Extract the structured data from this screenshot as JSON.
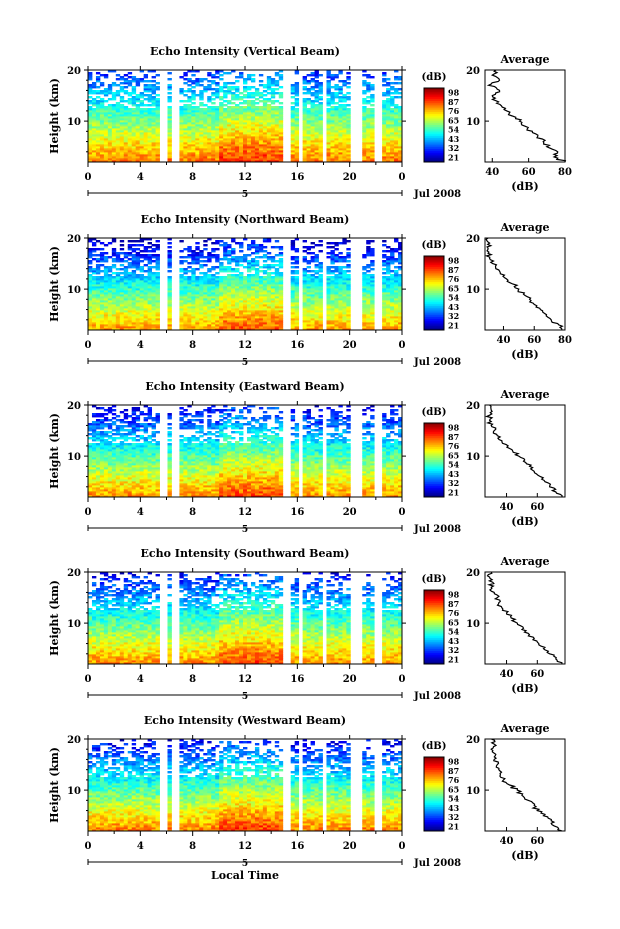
{
  "figure": {
    "xlabel": "Local Time",
    "date_label": "Jul 2008",
    "day_label": "5"
  },
  "chart_data": [
    {
      "type": "heatmap",
      "title": "Echo Intensity (Vertical Beam)",
      "xlabel": "",
      "ylabel": "Height (km)",
      "xlim": [
        0,
        24
      ],
      "ylim": [
        2,
        20
      ],
      "x_ticks": [
        "0",
        "4",
        "8",
        "12",
        "16",
        "20",
        "0"
      ],
      "y_ticks": [
        "20",
        "10"
      ],
      "colorbar": {
        "label": "(dB)",
        "ticks": [
          "98",
          "87",
          "76",
          "65",
          "54",
          "43",
          "32",
          "21"
        ]
      },
      "data_gaps_hours": [
        [
          5.6,
          6.0
        ],
        [
          6.5,
          7.1
        ],
        [
          15.0,
          15.4
        ],
        [
          16.0,
          16.3
        ],
        [
          17.8,
          18.2
        ],
        [
          20.2,
          21.1
        ],
        [
          22.0,
          22.4
        ]
      ],
      "surface_dB": 80,
      "decay_dB_per_km": 2.6,
      "noise_floor_dB": 21,
      "average_profile": {
        "title": "Average",
        "xlabel": "(dB)",
        "xlim": [
          36,
          80
        ],
        "x_ticks": [
          "40",
          "60",
          "80"
        ],
        "heights_km": [
          2,
          3,
          4,
          5,
          6,
          7,
          8,
          9,
          10,
          11,
          12,
          13,
          14,
          15,
          16,
          17,
          18,
          19,
          20
        ],
        "values_dB": [
          80,
          74,
          76,
          70,
          68,
          65,
          62,
          58,
          55,
          51,
          48,
          45,
          42,
          40,
          44,
          38,
          44,
          40,
          42
        ]
      }
    },
    {
      "type": "heatmap",
      "title": "Echo Intensity (Northward Beam)",
      "xlabel": "",
      "ylabel": "Height (km)",
      "xlim": [
        0,
        24
      ],
      "ylim": [
        2,
        20
      ],
      "x_ticks": [
        "0",
        "4",
        "8",
        "12",
        "16",
        "20",
        "0"
      ],
      "y_ticks": [
        "20",
        "10"
      ],
      "colorbar": {
        "label": "(dB)",
        "ticks": [
          "98",
          "87",
          "76",
          "65",
          "54",
          "43",
          "32",
          "21"
        ]
      },
      "data_gaps_hours": [
        [
          5.6,
          6.0
        ],
        [
          6.5,
          7.1
        ],
        [
          15.0,
          15.4
        ],
        [
          16.0,
          16.3
        ],
        [
          17.8,
          18.2
        ],
        [
          20.2,
          21.1
        ],
        [
          22.0,
          22.4
        ]
      ],
      "surface_dB": 77,
      "decay_dB_per_km": 2.9,
      "noise_floor_dB": 21,
      "average_profile": {
        "title": "Average",
        "xlabel": "(dB)",
        "xlim": [
          28,
          80
        ],
        "x_ticks": [
          "40",
          "60",
          "80"
        ],
        "heights_km": [
          2,
          3,
          4,
          5,
          6,
          7,
          8,
          9,
          10,
          11,
          12,
          13,
          14,
          15,
          16,
          17,
          18,
          19,
          20
        ],
        "values_dB": [
          78,
          76,
          71,
          68,
          64,
          60,
          57,
          53,
          50,
          46,
          42,
          38,
          35,
          33,
          31,
          30,
          30,
          31,
          30
        ]
      }
    },
    {
      "type": "heatmap",
      "title": "Echo Intensity (Eastward Beam)",
      "xlabel": "",
      "ylabel": "Height (km)",
      "xlim": [
        0,
        24
      ],
      "ylim": [
        2,
        20
      ],
      "x_ticks": [
        "0",
        "4",
        "8",
        "12",
        "16",
        "20",
        "0"
      ],
      "y_ticks": [
        "20",
        "10"
      ],
      "colorbar": {
        "label": "(dB)",
        "ticks": [
          "98",
          "87",
          "76",
          "65",
          "54",
          "43",
          "32",
          "21"
        ]
      },
      "data_gaps_hours": [
        [
          5.6,
          6.0
        ],
        [
          6.5,
          7.1
        ],
        [
          15.0,
          15.4
        ],
        [
          16.0,
          16.3
        ],
        [
          17.8,
          18.2
        ],
        [
          20.2,
          21.1
        ],
        [
          22.0,
          22.4
        ]
      ],
      "surface_dB": 78,
      "decay_dB_per_km": 2.8,
      "noise_floor_dB": 21,
      "average_profile": {
        "title": "Average",
        "xlabel": "(dB)",
        "xlim": [
          26,
          78
        ],
        "x_ticks": [
          "40",
          "60"
        ],
        "heights_km": [
          2,
          3,
          4,
          5,
          6,
          7,
          8,
          9,
          10,
          11,
          12,
          13,
          14,
          15,
          16,
          17,
          18,
          19,
          20
        ],
        "values_dB": [
          76,
          72,
          68,
          65,
          62,
          58,
          55,
          51,
          48,
          44,
          41,
          37,
          34,
          32,
          30,
          29,
          29,
          30,
          29
        ]
      }
    },
    {
      "type": "heatmap",
      "title": "Echo Intensity (Southward Beam)",
      "xlabel": "",
      "ylabel": "Height (km)",
      "xlim": [
        0,
        24
      ],
      "ylim": [
        2,
        20
      ],
      "x_ticks": [
        "0",
        "4",
        "8",
        "12",
        "16",
        "20",
        "0"
      ],
      "y_ticks": [
        "20",
        "10"
      ],
      "colorbar": {
        "label": "(dB)",
        "ticks": [
          "98",
          "87",
          "76",
          "65",
          "54",
          "43",
          "32",
          "21"
        ]
      },
      "data_gaps_hours": [
        [
          5.6,
          6.0
        ],
        [
          6.5,
          7.1
        ],
        [
          15.0,
          15.4
        ],
        [
          16.0,
          16.3
        ],
        [
          17.8,
          18.2
        ],
        [
          20.2,
          21.1
        ],
        [
          22.0,
          22.4
        ]
      ],
      "surface_dB": 78,
      "decay_dB_per_km": 2.7,
      "noise_floor_dB": 21,
      "average_profile": {
        "title": "Average",
        "xlabel": "(dB)",
        "xlim": [
          26,
          78
        ],
        "x_ticks": [
          "40",
          "60"
        ],
        "heights_km": [
          2,
          3,
          4,
          5,
          6,
          7,
          8,
          9,
          10,
          11,
          12,
          13,
          14,
          15,
          16,
          17,
          18,
          19,
          20
        ],
        "values_dB": [
          76,
          72,
          68,
          64,
          61,
          58,
          54,
          51,
          47,
          43,
          40,
          37,
          35,
          34,
          32,
          30,
          31,
          29,
          30
        ]
      }
    },
    {
      "type": "heatmap",
      "title": "Echo Intensity (Westward Beam)",
      "xlabel": "",
      "ylabel": "Height (km)",
      "xlim": [
        0,
        24
      ],
      "ylim": [
        2,
        20
      ],
      "x_ticks": [
        "0",
        "4",
        "8",
        "12",
        "16",
        "20",
        "0"
      ],
      "y_ticks": [
        "20",
        "10"
      ],
      "colorbar": {
        "label": "(dB)",
        "ticks": [
          "98",
          "87",
          "76",
          "65",
          "54",
          "43",
          "32",
          "21"
        ]
      },
      "data_gaps_hours": [
        [
          5.6,
          6.0
        ],
        [
          6.5,
          7.1
        ],
        [
          15.0,
          15.4
        ],
        [
          16.0,
          16.3
        ],
        [
          17.8,
          18.2
        ],
        [
          20.2,
          21.1
        ],
        [
          22.0,
          22.4
        ]
      ],
      "surface_dB": 79,
      "decay_dB_per_km": 2.8,
      "noise_floor_dB": 21,
      "average_profile": {
        "title": "Average",
        "xlabel": "(dB)",
        "xlim": [
          26,
          78
        ],
        "x_ticks": [
          "40",
          "60"
        ],
        "heights_km": [
          2,
          3,
          4,
          5,
          6,
          7,
          8,
          9,
          10,
          11,
          12,
          13,
          14,
          15,
          16,
          17,
          18,
          19,
          20
        ],
        "values_dB": [
          76,
          71,
          69,
          64,
          60,
          58,
          54,
          50,
          47,
          42,
          38,
          36,
          35,
          34,
          32,
          33,
          30,
          32,
          30
        ]
      }
    }
  ]
}
